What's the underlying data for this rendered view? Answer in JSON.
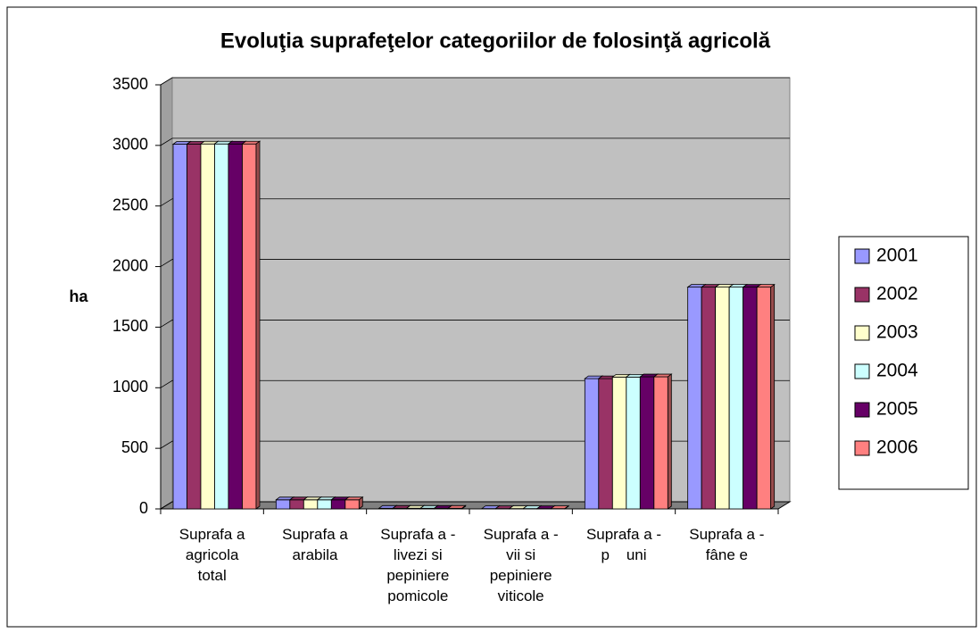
{
  "chart_data": {
    "type": "bar",
    "title": "Evoluţia suprafeţelor categoriilor de folosinţă agricolă",
    "ylabel": "ha",
    "categories": [
      "Suprafa a\nagricola\ntotal",
      "Suprafa a\narabila",
      "Suprafa a -\nlivezi si\npepiniere\npomicole",
      "Suprafa a -\nvii si\npepiniere\nviticole",
      "Suprafa a -\np    uni",
      "Suprafa a -\nfâne e"
    ],
    "series": [
      {
        "name": "2001",
        "color": "#9999ff",
        "values": [
          3010,
          75,
          5,
          3,
          1075,
          1830
        ]
      },
      {
        "name": "2002",
        "color": "#993366",
        "values": [
          3010,
          75,
          5,
          3,
          1075,
          1830
        ]
      },
      {
        "name": "2003",
        "color": "#ffffcc",
        "values": [
          3012,
          75,
          5,
          3,
          1088,
          1830
        ]
      },
      {
        "name": "2004",
        "color": "#ccffff",
        "values": [
          3012,
          75,
          5,
          3,
          1088,
          1830
        ]
      },
      {
        "name": "2005",
        "color": "#660066",
        "values": [
          3012,
          75,
          5,
          3,
          1090,
          1830
        ]
      },
      {
        "name": "2006",
        "color": "#ff8080",
        "values": [
          3012,
          75,
          5,
          3,
          1090,
          1830
        ]
      }
    ],
    "ylim": [
      0,
      3500
    ],
    "yticks": [
      0,
      500,
      1000,
      1500,
      2000,
      2500,
      3000,
      3500
    ],
    "grid": true,
    "legend": "right"
  }
}
